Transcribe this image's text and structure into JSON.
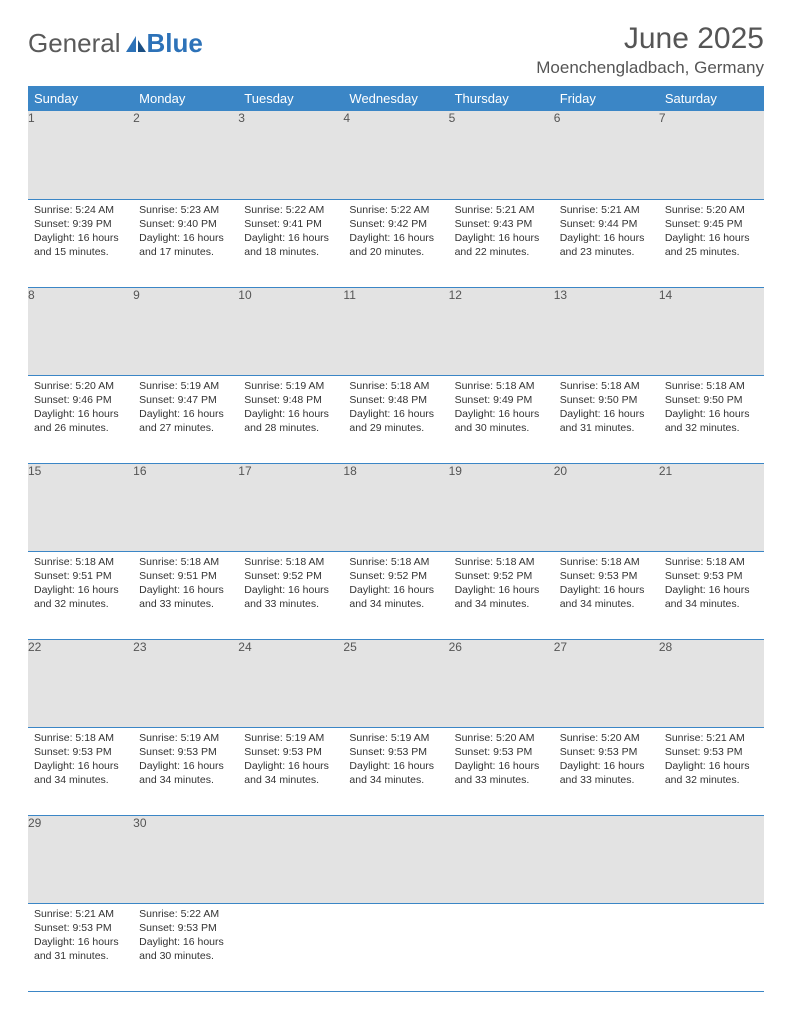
{
  "brand": {
    "part1": "General",
    "part2": "Blue"
  },
  "title": "June 2025",
  "location": "Moenchengladbach, Germany",
  "colors": {
    "header_bg": "#3b86c6",
    "header_text": "#ffffff",
    "daynum_bg": "#e3e3e3",
    "rule": "#3b86c6",
    "text": "#333333",
    "title_text": "#555555"
  },
  "weekdays": [
    "Sunday",
    "Monday",
    "Tuesday",
    "Wednesday",
    "Thursday",
    "Friday",
    "Saturday"
  ],
  "weeks": [
    [
      {
        "n": "1",
        "sunrise": "5:24 AM",
        "sunset": "9:39 PM",
        "daylight": "16 hours and 15 minutes."
      },
      {
        "n": "2",
        "sunrise": "5:23 AM",
        "sunset": "9:40 PM",
        "daylight": "16 hours and 17 minutes."
      },
      {
        "n": "3",
        "sunrise": "5:22 AM",
        "sunset": "9:41 PM",
        "daylight": "16 hours and 18 minutes."
      },
      {
        "n": "4",
        "sunrise": "5:22 AM",
        "sunset": "9:42 PM",
        "daylight": "16 hours and 20 minutes."
      },
      {
        "n": "5",
        "sunrise": "5:21 AM",
        "sunset": "9:43 PM",
        "daylight": "16 hours and 22 minutes."
      },
      {
        "n": "6",
        "sunrise": "5:21 AM",
        "sunset": "9:44 PM",
        "daylight": "16 hours and 23 minutes."
      },
      {
        "n": "7",
        "sunrise": "5:20 AM",
        "sunset": "9:45 PM",
        "daylight": "16 hours and 25 minutes."
      }
    ],
    [
      {
        "n": "8",
        "sunrise": "5:20 AM",
        "sunset": "9:46 PM",
        "daylight": "16 hours and 26 minutes."
      },
      {
        "n": "9",
        "sunrise": "5:19 AM",
        "sunset": "9:47 PM",
        "daylight": "16 hours and 27 minutes."
      },
      {
        "n": "10",
        "sunrise": "5:19 AM",
        "sunset": "9:48 PM",
        "daylight": "16 hours and 28 minutes."
      },
      {
        "n": "11",
        "sunrise": "5:18 AM",
        "sunset": "9:48 PM",
        "daylight": "16 hours and 29 minutes."
      },
      {
        "n": "12",
        "sunrise": "5:18 AM",
        "sunset": "9:49 PM",
        "daylight": "16 hours and 30 minutes."
      },
      {
        "n": "13",
        "sunrise": "5:18 AM",
        "sunset": "9:50 PM",
        "daylight": "16 hours and 31 minutes."
      },
      {
        "n": "14",
        "sunrise": "5:18 AM",
        "sunset": "9:50 PM",
        "daylight": "16 hours and 32 minutes."
      }
    ],
    [
      {
        "n": "15",
        "sunrise": "5:18 AM",
        "sunset": "9:51 PM",
        "daylight": "16 hours and 32 minutes."
      },
      {
        "n": "16",
        "sunrise": "5:18 AM",
        "sunset": "9:51 PM",
        "daylight": "16 hours and 33 minutes."
      },
      {
        "n": "17",
        "sunrise": "5:18 AM",
        "sunset": "9:52 PM",
        "daylight": "16 hours and 33 minutes."
      },
      {
        "n": "18",
        "sunrise": "5:18 AM",
        "sunset": "9:52 PM",
        "daylight": "16 hours and 34 minutes."
      },
      {
        "n": "19",
        "sunrise": "5:18 AM",
        "sunset": "9:52 PM",
        "daylight": "16 hours and 34 minutes."
      },
      {
        "n": "20",
        "sunrise": "5:18 AM",
        "sunset": "9:53 PM",
        "daylight": "16 hours and 34 minutes."
      },
      {
        "n": "21",
        "sunrise": "5:18 AM",
        "sunset": "9:53 PM",
        "daylight": "16 hours and 34 minutes."
      }
    ],
    [
      {
        "n": "22",
        "sunrise": "5:18 AM",
        "sunset": "9:53 PM",
        "daylight": "16 hours and 34 minutes."
      },
      {
        "n": "23",
        "sunrise": "5:19 AM",
        "sunset": "9:53 PM",
        "daylight": "16 hours and 34 minutes."
      },
      {
        "n": "24",
        "sunrise": "5:19 AM",
        "sunset": "9:53 PM",
        "daylight": "16 hours and 34 minutes."
      },
      {
        "n": "25",
        "sunrise": "5:19 AM",
        "sunset": "9:53 PM",
        "daylight": "16 hours and 34 minutes."
      },
      {
        "n": "26",
        "sunrise": "5:20 AM",
        "sunset": "9:53 PM",
        "daylight": "16 hours and 33 minutes."
      },
      {
        "n": "27",
        "sunrise": "5:20 AM",
        "sunset": "9:53 PM",
        "daylight": "16 hours and 33 minutes."
      },
      {
        "n": "28",
        "sunrise": "5:21 AM",
        "sunset": "9:53 PM",
        "daylight": "16 hours and 32 minutes."
      }
    ],
    [
      {
        "n": "29",
        "sunrise": "5:21 AM",
        "sunset": "9:53 PM",
        "daylight": "16 hours and 31 minutes."
      },
      {
        "n": "30",
        "sunrise": "5:22 AM",
        "sunset": "9:53 PM",
        "daylight": "16 hours and 30 minutes."
      },
      null,
      null,
      null,
      null,
      null
    ]
  ],
  "labels": {
    "sunrise": "Sunrise:",
    "sunset": "Sunset:",
    "daylight": "Daylight:"
  }
}
